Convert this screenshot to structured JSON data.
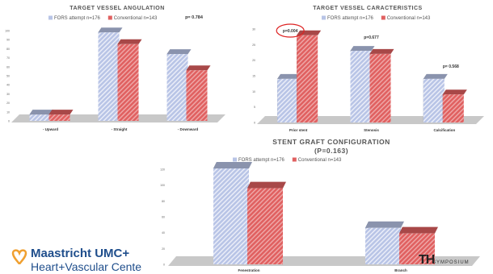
{
  "chart_data": [
    {
      "type": "bar",
      "title": "TARGET VESSEL ANGULATION",
      "annotation": "p= 0.784",
      "categories": [
        "Upward",
        "Straight",
        "Downward"
      ],
      "series": [
        {
          "name": "FORS attempt n=176",
          "values": [
            7,
            98,
            74
          ]
        },
        {
          "name": "Conventional n=143",
          "values": [
            7,
            85,
            56
          ]
        }
      ],
      "yticks": [
        0,
        10,
        20,
        30,
        40,
        50,
        60,
        70,
        80,
        90,
        100
      ],
      "ylim": [
        0,
        100
      ],
      "colors": [
        "#b8c4e6",
        "#e06060"
      ]
    },
    {
      "type": "bar",
      "title": "TARGET VESSEL CARACTERISTICS",
      "categories": [
        "Prior stent",
        "Stenosis",
        "Calcification"
      ],
      "category_annotations": [
        "p=0.004",
        "p=0.677",
        "p= 0.568"
      ],
      "series": [
        {
          "name": "FORS attempt n=176",
          "values": [
            14,
            23,
            14
          ]
        },
        {
          "name": "Conventional n=143",
          "values": [
            28,
            22,
            9
          ]
        }
      ],
      "yticks": [
        0,
        5,
        10,
        15,
        20,
        25,
        30
      ],
      "ylim": [
        0,
        30
      ],
      "colors": [
        "#b8c4e6",
        "#e06060"
      ]
    },
    {
      "type": "bar",
      "title": "STENT GRAFT CONFIGURATION",
      "subtitle": "(P=0.163)",
      "categories": [
        "Fenestration",
        "Branch"
      ],
      "series": [
        {
          "name": "FORS attempt n=176",
          "values": [
            121,
            46
          ]
        },
        {
          "name": "Conventional n=143",
          "values": [
            96,
            39
          ]
        }
      ],
      "yticks": [
        0,
        20,
        40,
        60,
        80,
        100,
        120
      ],
      "ylim": [
        0,
        120
      ],
      "colors": [
        "#b8c4e6",
        "#e06060"
      ]
    }
  ],
  "logos": {
    "left_brand": "Maastricht UMC+",
    "left_sub": "Heart+Vascular Cente",
    "right_main": "TH",
    "right_sub": "SYMPOSIUM"
  }
}
